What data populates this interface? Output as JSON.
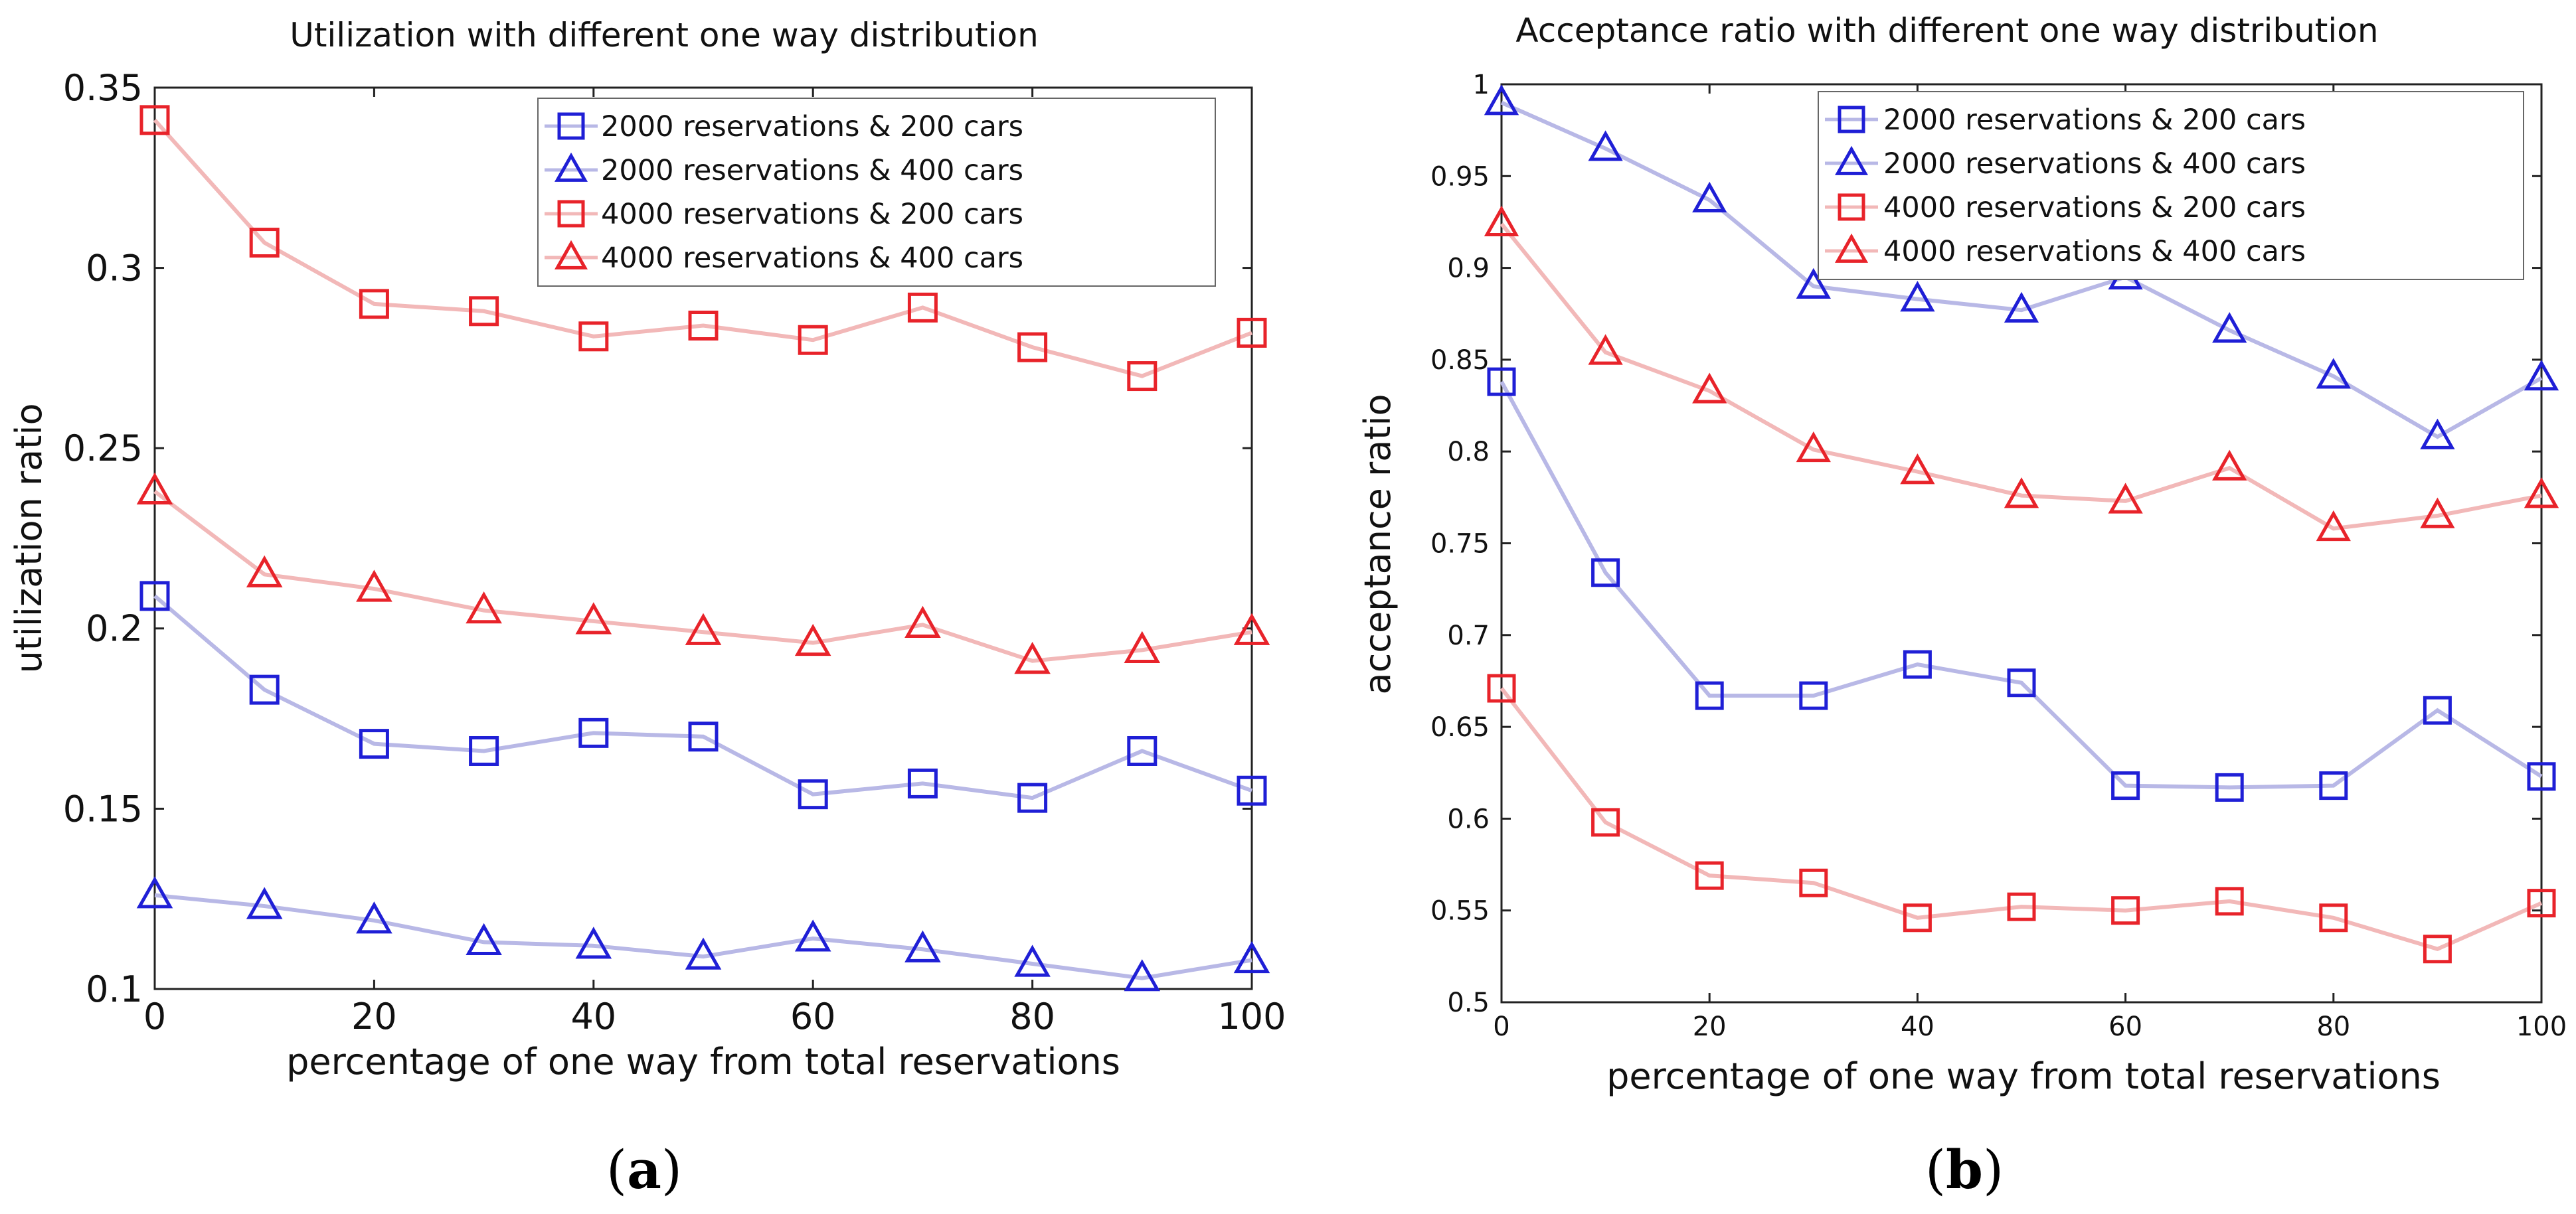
{
  "chart_data": [
    {
      "type": "line",
      "title": "Utilization with different one way distribution",
      "xlabel": "percentage of one way from total reservations",
      "ylabel": "utilization ratio",
      "panel_label": "a",
      "xlim": [
        0,
        100
      ],
      "ylim": [
        0.1,
        0.35
      ],
      "xticks": [
        0,
        20,
        40,
        60,
        80,
        100
      ],
      "yticks": [
        0.1,
        0.15,
        0.2,
        0.25,
        0.3,
        0.35
      ],
      "ytick_labels": [
        "0.1",
        "0.15",
        "0.2",
        "0.25",
        "0.3",
        "0.35"
      ],
      "legend_position": "top-right",
      "x": [
        0,
        10,
        20,
        30,
        40,
        50,
        60,
        70,
        80,
        90,
        100
      ],
      "series": [
        {
          "name": "2000 reservations & 200 cars",
          "marker": "square",
          "color": "#1f1fd6",
          "line_color": "#b8b8e6",
          "values": [
            0.209,
            0.183,
            0.168,
            0.166,
            0.171,
            0.17,
            0.154,
            0.157,
            0.153,
            0.166,
            0.155
          ]
        },
        {
          "name": "2000 reservations & 400 cars",
          "marker": "triangle",
          "color": "#1f1fd6",
          "line_color": "#b8b8e6",
          "values": [
            0.126,
            0.123,
            0.119,
            0.113,
            0.112,
            0.109,
            0.114,
            0.111,
            0.107,
            0.103,
            0.108
          ]
        },
        {
          "name": "4000 reservations & 200 cars",
          "marker": "square",
          "color": "#e8232a",
          "line_color": "#f2b8b8",
          "values": [
            0.341,
            0.307,
            0.29,
            0.288,
            0.281,
            0.284,
            0.28,
            0.289,
            0.278,
            0.27,
            0.282
          ]
        },
        {
          "name": "4000 reservations & 400 cars",
          "marker": "triangle",
          "color": "#e8232a",
          "line_color": "#f2b8b8",
          "values": [
            0.238,
            0.215,
            0.211,
            0.205,
            0.202,
            0.199,
            0.196,
            0.201,
            0.191,
            0.194,
            0.199
          ]
        }
      ]
    },
    {
      "type": "line",
      "title": "Acceptance ratio with different one way distribution",
      "xlabel": "percentage of one way from total reservations",
      "ylabel": "acceptance ratio",
      "panel_label": "b",
      "xlim": [
        0,
        100
      ],
      "ylim": [
        0.5,
        1.0
      ],
      "xticks": [
        0,
        20,
        40,
        60,
        80,
        100
      ],
      "yticks": [
        0.5,
        0.55,
        0.6,
        0.65,
        0.7,
        0.75,
        0.8,
        0.85,
        0.9,
        0.95,
        1.0
      ],
      "ytick_labels": [
        "0.5",
        "0.55",
        "0.6",
        "0.65",
        "0.7",
        "0.75",
        "0.8",
        "0.85",
        "0.9",
        "0.95",
        "1"
      ],
      "legend_position": "top-right",
      "x": [
        0,
        10,
        20,
        30,
        40,
        50,
        60,
        70,
        80,
        90,
        100
      ],
      "series": [
        {
          "name": "2000 reservations & 200 cars",
          "marker": "square",
          "color": "#1f1fd6",
          "line_color": "#b8b8e6",
          "values": [
            0.838,
            0.734,
            0.667,
            0.667,
            0.684,
            0.674,
            0.618,
            0.617,
            0.618,
            0.659,
            0.623
          ]
        },
        {
          "name": "2000 reservations & 400 cars",
          "marker": "triangle",
          "color": "#1f1fd6",
          "line_color": "#b8b8e6",
          "values": [
            0.99,
            0.965,
            0.937,
            0.89,
            0.883,
            0.877,
            0.895,
            0.866,
            0.841,
            0.808,
            0.84
          ]
        },
        {
          "name": "4000 reservations & 200 cars",
          "marker": "square",
          "color": "#e8232a",
          "line_color": "#f2b8b8",
          "values": [
            0.671,
            0.598,
            0.569,
            0.565,
            0.546,
            0.552,
            0.55,
            0.555,
            0.546,
            0.529,
            0.554
          ]
        },
        {
          "name": "4000 reservations & 400 cars",
          "marker": "triangle",
          "color": "#e8232a",
          "line_color": "#f2b8b8",
          "values": [
            0.924,
            0.854,
            0.833,
            0.801,
            0.789,
            0.776,
            0.773,
            0.791,
            0.758,
            0.765,
            0.776
          ]
        }
      ]
    }
  ]
}
